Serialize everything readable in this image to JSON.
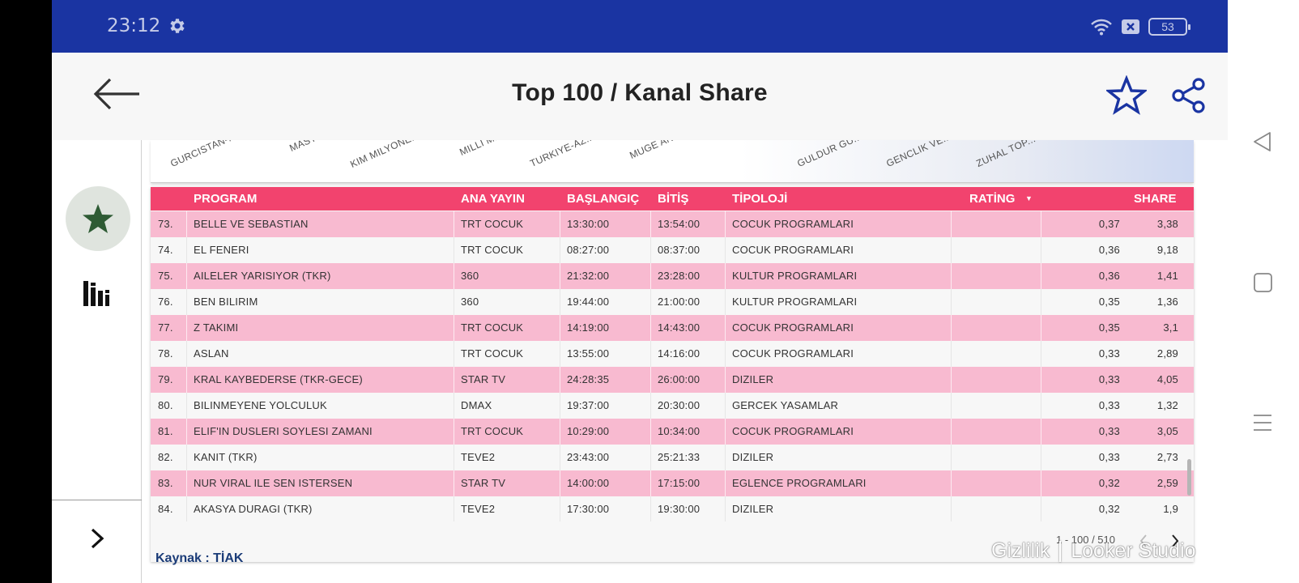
{
  "status_bar": {
    "time": "23:12",
    "battery": "53",
    "icons": [
      "gear-icon",
      "wifi-icon",
      "sim-x-icon",
      "battery-icon"
    ]
  },
  "app_bar": {
    "title": "Top 100  / Kanal Share",
    "icons": [
      "back-arrow-icon",
      "star-outline-icon",
      "share-icon"
    ]
  },
  "side_nav": {
    "icons": [
      "star-icon",
      "bar-chart-icon",
      "chevron-right-icon"
    ]
  },
  "chart_strip": {
    "labels": [
      "GURCISTAN-...",
      "MASTE...",
      "KIM MILYONE...",
      "MILLI M...",
      "TURKIYE-AZ...",
      "MUGE AN...",
      "GULDUR GU...",
      "GENCLIK VE...",
      "ZUHAL TOP..."
    ]
  },
  "table": {
    "headers": {
      "program": "PROGRAM",
      "ana_yayin": "ANA YAYIN",
      "baslangic": "BAŞLANGIÇ",
      "bitis": "BİTİŞ",
      "tipoloji": "TİPOLOJİ",
      "rating": "RATİNG",
      "share": "SHARE"
    },
    "sort_indicator": "▼",
    "rows": [
      {
        "no": "73.",
        "program": "BELLE VE SEBASTIAN",
        "ana_yayin": "TRT COCUK",
        "baslangic": "13:30:00",
        "bitis": "13:54:00",
        "tipoloji": "COCUK PROGRAMLARI",
        "rating": "0,37",
        "share": "3,38"
      },
      {
        "no": "74.",
        "program": "EL FENERI",
        "ana_yayin": "TRT COCUK",
        "baslangic": "08:27:00",
        "bitis": "08:37:00",
        "tipoloji": "COCUK PROGRAMLARI",
        "rating": "0,36",
        "share": "9,18"
      },
      {
        "no": "75.",
        "program": "AILELER YARISIYOR (TKR)",
        "ana_yayin": "360",
        "baslangic": "21:32:00",
        "bitis": "23:28:00",
        "tipoloji": "KULTUR PROGRAMLARI",
        "rating": "0,36",
        "share": "1,41"
      },
      {
        "no": "76.",
        "program": "BEN BILIRIM",
        "ana_yayin": "360",
        "baslangic": "19:44:00",
        "bitis": "21:00:00",
        "tipoloji": "KULTUR PROGRAMLARI",
        "rating": "0,35",
        "share": "1,36"
      },
      {
        "no": "77.",
        "program": "Z TAKIMI",
        "ana_yayin": "TRT COCUK",
        "baslangic": "14:19:00",
        "bitis": "14:43:00",
        "tipoloji": "COCUK PROGRAMLARI",
        "rating": "0,35",
        "share": "3,1"
      },
      {
        "no": "78.",
        "program": "ASLAN",
        "ana_yayin": "TRT COCUK",
        "baslangic": "13:55:00",
        "bitis": "14:16:00",
        "tipoloji": "COCUK PROGRAMLARI",
        "rating": "0,33",
        "share": "2,89"
      },
      {
        "no": "79.",
        "program": "KRAL KAYBEDERSE (TKR-GECE)",
        "ana_yayin": "STAR TV",
        "baslangic": "24:28:35",
        "bitis": "26:00:00",
        "tipoloji": "DIZILER",
        "rating": "0,33",
        "share": "4,05"
      },
      {
        "no": "80.",
        "program": "BILINMEYENE YOLCULUK",
        "ana_yayin": "DMAX",
        "baslangic": "19:37:00",
        "bitis": "20:30:00",
        "tipoloji": "GERCEK YASAMLAR",
        "rating": "0,33",
        "share": "1,32"
      },
      {
        "no": "81.",
        "program": "ELIF'IN DUSLERI SOYLESI ZAMANI",
        "ana_yayin": "TRT COCUK",
        "baslangic": "10:29:00",
        "bitis": "10:34:00",
        "tipoloji": "COCUK PROGRAMLARI",
        "rating": "0,33",
        "share": "3,05"
      },
      {
        "no": "82.",
        "program": "KANIT (TKR)",
        "ana_yayin": "TEVE2",
        "baslangic": "23:43:00",
        "bitis": "25:21:33",
        "tipoloji": "DIZILER",
        "rating": "0,33",
        "share": "2,73"
      },
      {
        "no": "83.",
        "program": "NUR VIRAL ILE SEN ISTERSEN",
        "ana_yayin": "STAR TV",
        "baslangic": "14:00:00",
        "bitis": "17:15:00",
        "tipoloji": "EGLENCE PROGRAMLARI",
        "rating": "0,32",
        "share": "2,59"
      },
      {
        "no": "84.",
        "program": "AKASYA DURAGI (TKR)",
        "ana_yayin": "TEVE2",
        "baslangic": "17:30:00",
        "bitis": "19:30:00",
        "tipoloji": "DIZILER",
        "rating": "0,32",
        "share": "1,9"
      }
    ],
    "pager": "1 - 100 / 510"
  },
  "source": "Kaynak : TİAK",
  "watermark": {
    "privacy": "Gizlilik",
    "product": "Looker Studio"
  },
  "colors": {
    "status_bar": "#1a34a2",
    "header_pink": "#f2436e",
    "row_pink": "#f8bad0",
    "accent_navy": "#1a34a2",
    "source_text": "#1b3c78"
  }
}
